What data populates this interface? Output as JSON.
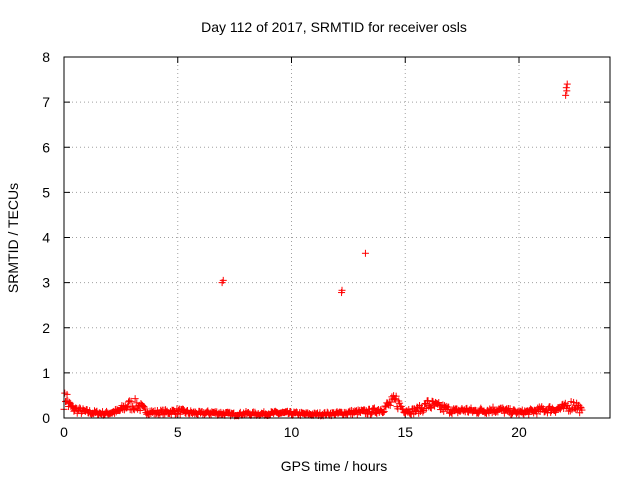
{
  "chart_data": {
    "type": "scatter",
    "title": "Day 112 of 2017, SRMTID for receiver osls",
    "xlabel": "GPS time / hours",
    "ylabel": "SRMTID / TECUs",
    "xlim": [
      0,
      24
    ],
    "ylim": [
      0,
      8
    ],
    "xticks": [
      0,
      5,
      10,
      15,
      20
    ],
    "yticks": [
      0,
      1,
      2,
      3,
      4,
      5,
      6,
      7,
      8
    ],
    "grid": true,
    "marker": "+",
    "color": "#ff0000",
    "series": [
      {
        "name": "SRMTID",
        "baseline_trace": {
          "x": [
            0.0,
            0.1,
            0.2,
            0.4,
            0.8,
            1.2,
            1.8,
            2.4,
            2.8,
            3.2,
            3.6,
            4.0,
            4.5,
            5.0,
            5.5,
            6.0,
            6.5,
            7.0,
            7.5,
            8.0,
            8.5,
            9.0,
            9.5,
            10.0,
            10.5,
            11.0,
            11.5,
            12.0,
            12.5,
            13.0,
            13.5,
            14.0,
            14.3,
            14.6,
            14.9,
            15.3,
            15.7,
            16.0,
            16.4,
            16.8,
            17.2,
            17.6,
            18.0,
            18.5,
            19.0,
            19.5,
            20.0,
            20.5,
            21.0,
            21.5,
            22.0,
            22.4,
            22.6,
            22.8
          ],
          "y": [
            0.35,
            0.5,
            0.3,
            0.2,
            0.15,
            0.12,
            0.1,
            0.15,
            0.28,
            0.3,
            0.15,
            0.12,
            0.13,
            0.15,
            0.12,
            0.1,
            0.12,
            0.1,
            0.08,
            0.1,
            0.09,
            0.1,
            0.11,
            0.1,
            0.09,
            0.08,
            0.09,
            0.1,
            0.12,
            0.13,
            0.14,
            0.2,
            0.3,
            0.38,
            0.2,
            0.15,
            0.2,
            0.3,
            0.25,
            0.2,
            0.15,
            0.18,
            0.15,
            0.17,
            0.19,
            0.15,
            0.12,
            0.14,
            0.18,
            0.2,
            0.22,
            0.3,
            0.25,
            0.12
          ]
        },
        "outliers": {
          "x": [
            6.95,
            7.0,
            12.2,
            12.22,
            13.25,
            22.05,
            22.1,
            22.08,
            22.12
          ],
          "y": [
            3.0,
            3.05,
            2.78,
            2.83,
            3.65,
            7.15,
            7.25,
            7.32,
            7.4
          ]
        }
      }
    ]
  }
}
